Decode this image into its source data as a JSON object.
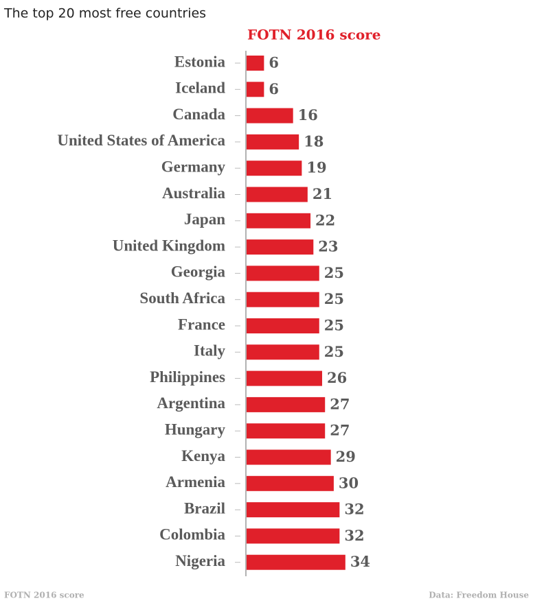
{
  "chart_data": {
    "type": "bar",
    "orientation": "horizontal",
    "title": "The top 20 most free countries",
    "subtitle": "FOTN 2016 score",
    "categories": [
      "Estonia",
      "Iceland",
      "Canada",
      "United States of America",
      "Germany",
      "Australia",
      "Japan",
      "United Kingdom",
      "Georgia",
      "South Africa",
      "France",
      "Italy",
      "Philippines",
      "Argentina",
      "Hungary",
      "Kenya",
      "Armenia",
      "Brazil",
      "Colombia",
      "Nigeria"
    ],
    "values": [
      6,
      6,
      16,
      18,
      19,
      21,
      22,
      23,
      25,
      25,
      25,
      25,
      26,
      27,
      27,
      29,
      30,
      32,
      32,
      34
    ],
    "color": "#e0202a",
    "footer_label": "FOTN 2016 score",
    "source": "Data: Freedom House"
  }
}
